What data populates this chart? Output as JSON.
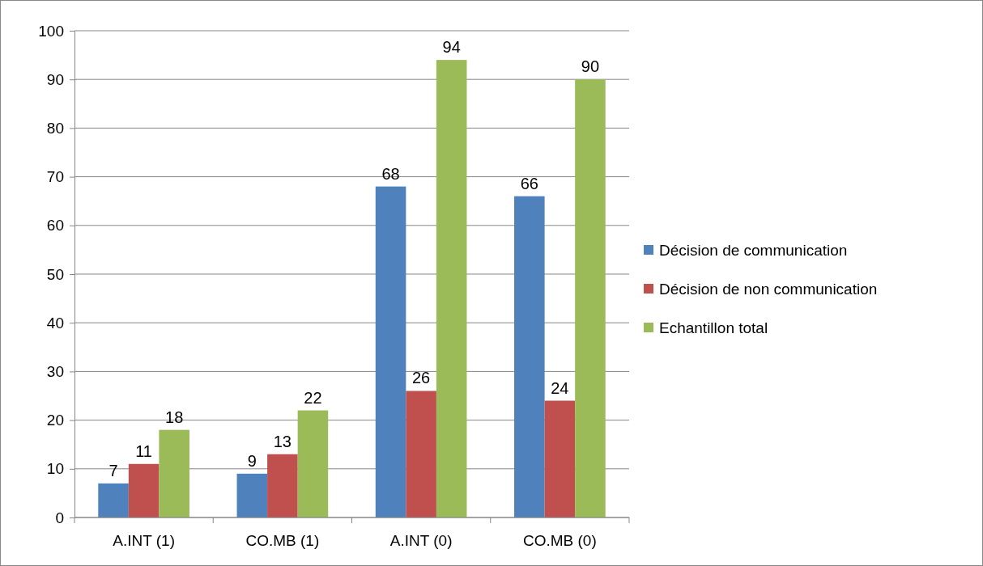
{
  "chart_data": {
    "type": "bar",
    "categories": [
      "A.INT (1)",
      "CO.MB (1)",
      "A.INT (0)",
      "CO.MB (0)"
    ],
    "series": [
      {
        "name": "Décision de communication",
        "color": "#4f81bd",
        "values": [
          7,
          9,
          68,
          66
        ]
      },
      {
        "name": "Décision de non communication",
        "color": "#c0504d",
        "values": [
          11,
          13,
          26,
          24
        ]
      },
      {
        "name": "Echantillon total",
        "color": "#9bbb59",
        "values": [
          18,
          22,
          94,
          90
        ]
      }
    ],
    "ylim": [
      0,
      100
    ],
    "yticks": [
      0,
      10,
      20,
      30,
      40,
      50,
      60,
      70,
      80,
      90,
      100
    ],
    "grid": "y",
    "legend": "right",
    "data_labels": true
  }
}
